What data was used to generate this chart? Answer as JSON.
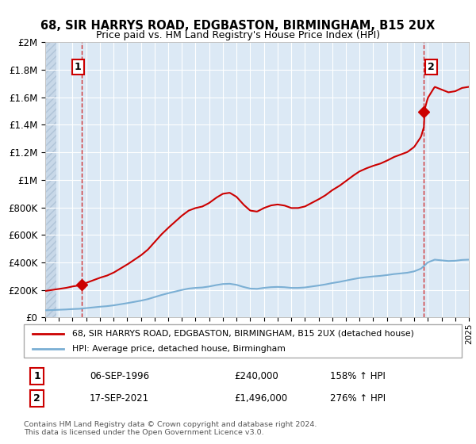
{
  "title": "68, SIR HARRYS ROAD, EDGBASTON, BIRMINGHAM, B15 2UX",
  "subtitle": "Price paid vs. HM Land Registry's House Price Index (HPI)",
  "sale1_year": 1996.69,
  "sale1_price": 240000,
  "sale2_year": 2021.72,
  "sale2_price": 1496000,
  "sale1_date": "06-SEP-1996",
  "sale2_date": "17-SEP-2021",
  "sale1_hpi": "158% ↑ HPI",
  "sale2_hpi": "276% ↑ HPI",
  "legend1": "68, SIR HARRYS ROAD, EDGBASTON, BIRMINGHAM, B15 2UX (detached house)",
  "legend2": "HPI: Average price, detached house, Birmingham",
  "annotation1": "1",
  "annotation2": "2",
  "footer1": "Contains HM Land Registry data © Crown copyright and database right 2024.",
  "footer2": "This data is licensed under the Open Government Licence v3.0.",
  "xmin": 1994,
  "xmax": 2025,
  "ymin": 0,
  "ymax": 2000000,
  "property_color": "#cc0000",
  "hpi_color": "#7bafd4",
  "plot_bg": "#dce9f5",
  "background_color": "#ffffff",
  "grid_color": "#ffffff",
  "hatch_color": "#c8d8e8"
}
